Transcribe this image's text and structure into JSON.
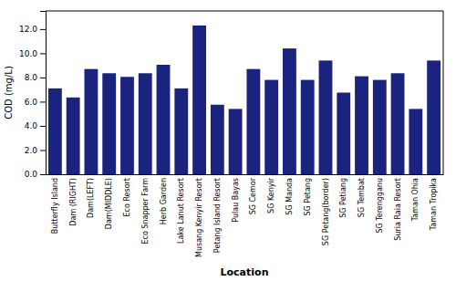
{
  "chart_data": {
    "type": "bar",
    "xlabel": "Location",
    "ylabel": "COD (mg/L)",
    "categories": [
      "Butterfly Island",
      "Dam (RIGHT)",
      "Dam(LEFT)",
      "Dam(MIDDLE)",
      "Eco Resort",
      "Eco Snapper Farm",
      "Herb Garden",
      "Lake Lanut Resort",
      "Musang Kenyir Resort",
      "Petang Island Resort",
      "Pulau Bayas",
      "SG Cemor",
      "SG Kenyir",
      "SG Manda",
      "SG Petang",
      "SG Petang(border)",
      "SG Petiang",
      "SG Tembat",
      "SG Terengganu",
      "Suria Raia Resort",
      "Taman Ohia",
      "Taman Tropika"
    ],
    "values": [
      7.1,
      6.35,
      8.7,
      8.35,
      8.05,
      8.35,
      9.05,
      7.1,
      12.3,
      5.75,
      5.4,
      8.7,
      7.8,
      10.4,
      7.8,
      9.4,
      6.75,
      8.1,
      7.8,
      8.35,
      5.4,
      9.4
    ],
    "color": "#1a237e",
    "ylim": [
      0,
      13.5
    ],
    "yticks": [
      {
        "value": 0.0,
        "label": "0.0"
      },
      {
        "value": 2.0,
        "label": "2.0"
      },
      {
        "value": 4.0,
        "label": "4.0"
      },
      {
        "value": 6.0,
        "label": "6.0"
      },
      {
        "value": 8.0,
        "label": "8.0"
      },
      {
        "value": 10.0,
        "label": "10.0"
      },
      {
        "value": 12.0,
        "label": "12.0"
      }
    ],
    "grid": false
  }
}
